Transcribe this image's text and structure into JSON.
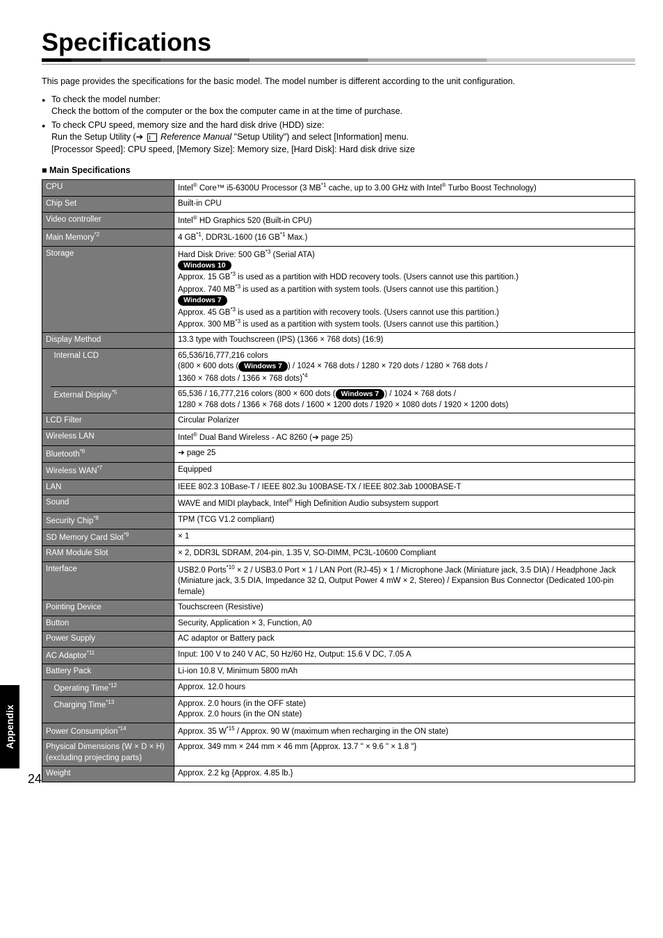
{
  "page": {
    "title": "Specifications",
    "side_tab": "Appendix",
    "page_number": "24",
    "intro": "This page provides the specifications for the basic model. The model number is different according to the unit configuration.",
    "bullets": [
      {
        "head": "To check the model number:",
        "sub": "Check the bottom of the computer or the box the computer came in at the time of purchase."
      },
      {
        "head": "To check CPU speed, memory size and the hard disk drive (HDD) size:",
        "sub_prefix": "Run the Setup Utility (",
        "sub_arrow": "➔",
        "sub_manual": " Reference Manual",
        "sub_suffix": " \"Setup Utility\") and select [Information] menu.",
        "sub2": "[Processor Speed]: CPU speed, [Memory Size]: Memory size, [Hard Disk]: Hard disk drive size"
      }
    ],
    "section_head": "Main Specifications"
  },
  "rows": {
    "cpu": {
      "label": "CPU",
      "v1": "Intel",
      "sup1": "®",
      "v2": " Core™ i5-6300U Processor (3 MB",
      "sup2": "*1",
      "v3": " cache, up to 3.00 GHz with Intel",
      "sup3": "®",
      "v4": " Turbo Boost Technology)"
    },
    "chipset": {
      "label": "Chip Set",
      "value": "Built-in CPU"
    },
    "video": {
      "label": "Video controller",
      "v1": "Intel",
      "sup1": "®",
      "v2": " HD Graphics 520 (Built-in CPU)"
    },
    "memory": {
      "label": "Main Memory",
      "labelsup": "*2",
      "v1": "4 GB",
      "sup1": "*1",
      "v2": ", DDR3L-1600 (16 GB",
      "sup2": "*1",
      "v3": " Max.)"
    },
    "storage": {
      "label": "Storage",
      "l1a": "Hard Disk Drive: 500 GB",
      "l1sup": "*3",
      "l1b": " (Serial ATA)",
      "badge10": "Windows 10",
      "l2a": "Approx. 15 GB",
      "l2sup": "*3",
      "l2b": " is used as a partition with HDD recovery tools. (Users cannot use this partition.)",
      "l3a": "Approx. 740 MB",
      "l3sup": "*3",
      "l3b": " is used as a partition with system tools. (Users cannot use this partition.)",
      "badge7": "Windows 7",
      "l4a": "Approx. 45 GB",
      "l4sup": "*3",
      "l4b": " is used as a partition with recovery tools. (Users cannot use this partition.)",
      "l5a": "Approx. 300 MB",
      "l5sup": "*3",
      "l5b": " is used as a partition with system tools. (Users cannot use this partition.)"
    },
    "display": {
      "label": "Display Method",
      "value": "13.3 type with Touchscreen (IPS) (1366 × 768 dots) (16:9)"
    },
    "internal_lcd": {
      "label": "Internal LCD",
      "l1": "65,536/16,777,216 colors",
      "l2a": "(800 × 600 dots (",
      "badge7": "Windows 7",
      "l2b": ") / 1024 × 768 dots / 1280 × 720 dots / 1280 × 768 dots /",
      "l3a": "1360 × 768 dots / 1366 × 768 dots)",
      "l3sup": "*4"
    },
    "external": {
      "label": "External Display",
      "labelsup": "*5",
      "l1a": "65,536 / 16,777,216 colors (800 × 600 dots (",
      "badge7": "Windows 7",
      "l1b": ") / 1024 × 768 dots /",
      "l2": "1280 × 768 dots / 1366 × 768 dots / 1600 × 1200 dots / 1920 × 1080 dots / 1920 × 1200 dots)"
    },
    "lcdfilter": {
      "label": "LCD Filter",
      "value": "Circular Polarizer"
    },
    "wlan": {
      "label": "Wireless LAN",
      "v1": "Intel",
      "sup1": "®",
      "v2": " Dual Band Wireless - AC 8260 (",
      "arrow": "➔",
      "v3": " page 25)"
    },
    "bt": {
      "label": "Bluetooth",
      "labelsup": "*6",
      "arrow": "➔",
      "value": " page 25"
    },
    "wwan": {
      "label": "Wireless WAN",
      "labelsup": "*7",
      "value": "Equipped"
    },
    "lan": {
      "label": "LAN",
      "value": "IEEE 802.3 10Base-T / IEEE 802.3u 100BASE-TX / IEEE 802.3ab 1000BASE-T"
    },
    "sound": {
      "label": "Sound",
      "v1": "WAVE and MIDI playback, Intel",
      "sup1": "®",
      "v2": " High Definition Audio subsystem support"
    },
    "security": {
      "label": "Security Chip",
      "labelsup": "*8",
      "value": "TPM (TCG V1.2 compliant)"
    },
    "sd": {
      "label": "SD Memory Card Slot",
      "labelsup": "*9",
      "value": "× 1"
    },
    "ram": {
      "label": "RAM Module Slot",
      "value": "× 2, DDR3L SDRAM, 204-pin, 1.35 V, SO-DIMM, PC3L-10600 Compliant"
    },
    "interface": {
      "label": "Interface",
      "v1": "USB2.0 Ports",
      "sup1": "*10",
      "v2": " × 2 / USB3.0 Port × 1 / LAN Port (RJ-45) × 1 / Microphone Jack (Miniature jack, 3.5 DIA) / Headphone Jack (Miniature jack, 3.5 DIA, Impedance 32 Ω, Output Power 4 mW × 2, Stereo) / Expansion Bus Connector (Dedicated 100-pin female)"
    },
    "pointing": {
      "label": "Pointing Device",
      "value": "Touchscreen (Resistive)"
    },
    "button": {
      "label": "Button",
      "value": "Security, Application × 3, Function, A0"
    },
    "psu": {
      "label": "Power Supply",
      "value": "AC adaptor or Battery pack"
    },
    "ac": {
      "label": "AC Adaptor",
      "labelsup": "*11",
      "value": "Input: 100 V to 240 V AC, 50 Hz/60 Hz, Output: 15.6 V DC, 7.05 A"
    },
    "battery": {
      "label": "Battery Pack",
      "value": "Li-ion 10.8 V, Minimum 5800 mAh"
    },
    "optime": {
      "label": "Operating Time",
      "labelsup": "*12",
      "value": "Approx. 12.0 hours"
    },
    "chtime": {
      "label": "Charging Time",
      "labelsup": "*13",
      "l1": "Approx. 2.0 hours (in the OFF state)",
      "l2": "Approx. 2.0 hours (in the ON state)"
    },
    "power": {
      "label": "Power Consumption",
      "labelsup": "*14",
      "v1": "Approx. 35 W",
      "sup1": "*15",
      "v2": " / Approx. 90 W (maximum when recharging in the ON state)"
    },
    "dim": {
      "label": "Physical Dimensions (W × D × H) (excluding projecting parts)",
      "value": "Approx. 349 mm × 244 mm × 46 mm  {Approx. 13.7 \" × 9.6 \" × 1.8 \"}"
    },
    "weight": {
      "label": "Weight",
      "value": "Approx. 2.2 kg {Approx. 4.85 lb.}"
    }
  }
}
